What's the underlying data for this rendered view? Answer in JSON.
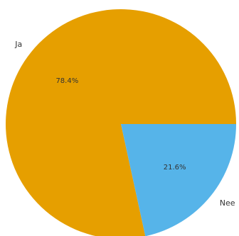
{
  "chart_data": {
    "type": "pie",
    "categories": [
      "Ja",
      "Nee"
    ],
    "values": [
      78.4,
      21.6
    ],
    "percent_labels": [
      "78.4%",
      "21.6%"
    ],
    "colors": [
      "#E69F00",
      "#56B4E9"
    ],
    "title": "",
    "legend": "none"
  }
}
